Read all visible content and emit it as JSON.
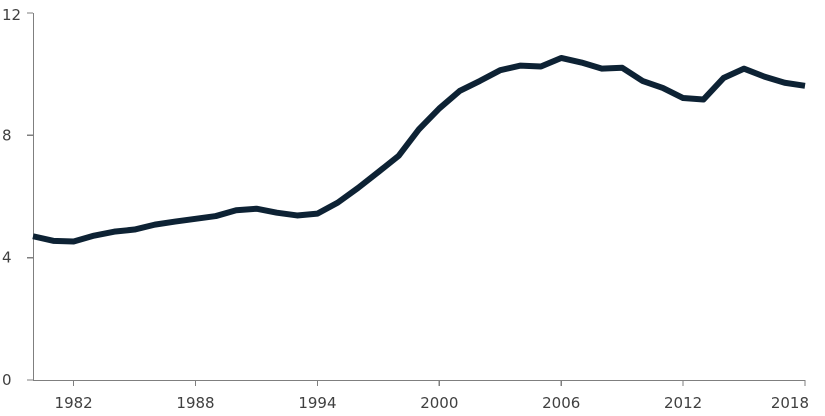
{
  "chart_data": {
    "type": "line",
    "title": "",
    "xlabel": "",
    "ylabel": "",
    "xlim": [
      1980,
      2018
    ],
    "ylim": [
      0,
      12
    ],
    "grid": false,
    "legend": "none",
    "x_ticks": [
      1982,
      1988,
      1994,
      2000,
      2006,
      2012,
      2018
    ],
    "x_tick_labels": [
      "1982",
      "1988",
      "1994",
      "2000",
      "2006",
      "2012",
      "2018"
    ],
    "y_ticks": [
      0,
      4,
      8,
      12
    ],
    "y_tick_labels": [
      "0",
      "4",
      "8",
      "12"
    ],
    "x": [
      1980,
      1981,
      1982,
      1983,
      1984,
      1985,
      1986,
      1987,
      1988,
      1989,
      1990,
      1991,
      1992,
      1993,
      1994,
      1995,
      1996,
      1997,
      1998,
      1999,
      2000,
      2001,
      2002,
      2003,
      2004,
      2005,
      2006,
      2007,
      2008,
      2009,
      2010,
      2011,
      2012,
      2013,
      2014,
      2015,
      2016,
      2017,
      2018
    ],
    "series": [
      {
        "color": "#0d2234",
        "values": [
          4.7,
          4.55,
          4.53,
          4.72,
          4.85,
          4.92,
          5.08,
          5.18,
          5.27,
          5.36,
          5.55,
          5.6,
          5.47,
          5.38,
          5.44,
          5.8,
          6.28,
          6.8,
          7.33,
          8.2,
          8.88,
          9.45,
          9.78,
          10.13,
          10.28,
          10.25,
          10.53,
          10.38,
          10.18,
          10.21,
          9.78,
          9.55,
          9.22,
          9.17,
          9.88,
          10.18,
          9.92,
          9.72,
          9.62
        ]
      }
    ]
  }
}
